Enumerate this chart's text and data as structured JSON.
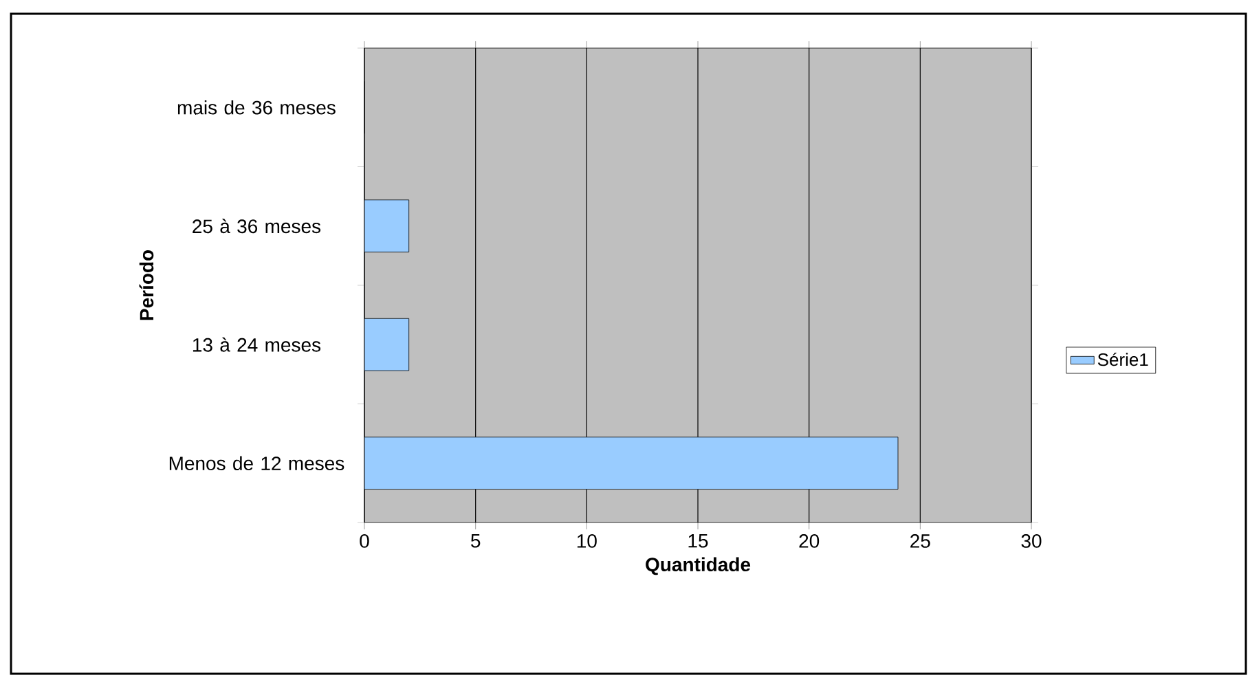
{
  "chart_data": {
    "type": "bar",
    "orientation": "horizontal",
    "categories": [
      "mais de 36 meses",
      "25 à 36 meses",
      "13 à 24 meses",
      "Menos de 12 meses"
    ],
    "series": [
      {
        "name": "Série1",
        "color": "#99ccff",
        "values": [
          0,
          2,
          2,
          24
        ]
      }
    ],
    "xlim": [
      0,
      30
    ],
    "xticks": [
      0,
      5,
      10,
      15,
      20,
      25,
      30
    ],
    "xlabel": "Quantidade",
    "ylabel": "Período",
    "grid": "x",
    "legend": "right"
  }
}
